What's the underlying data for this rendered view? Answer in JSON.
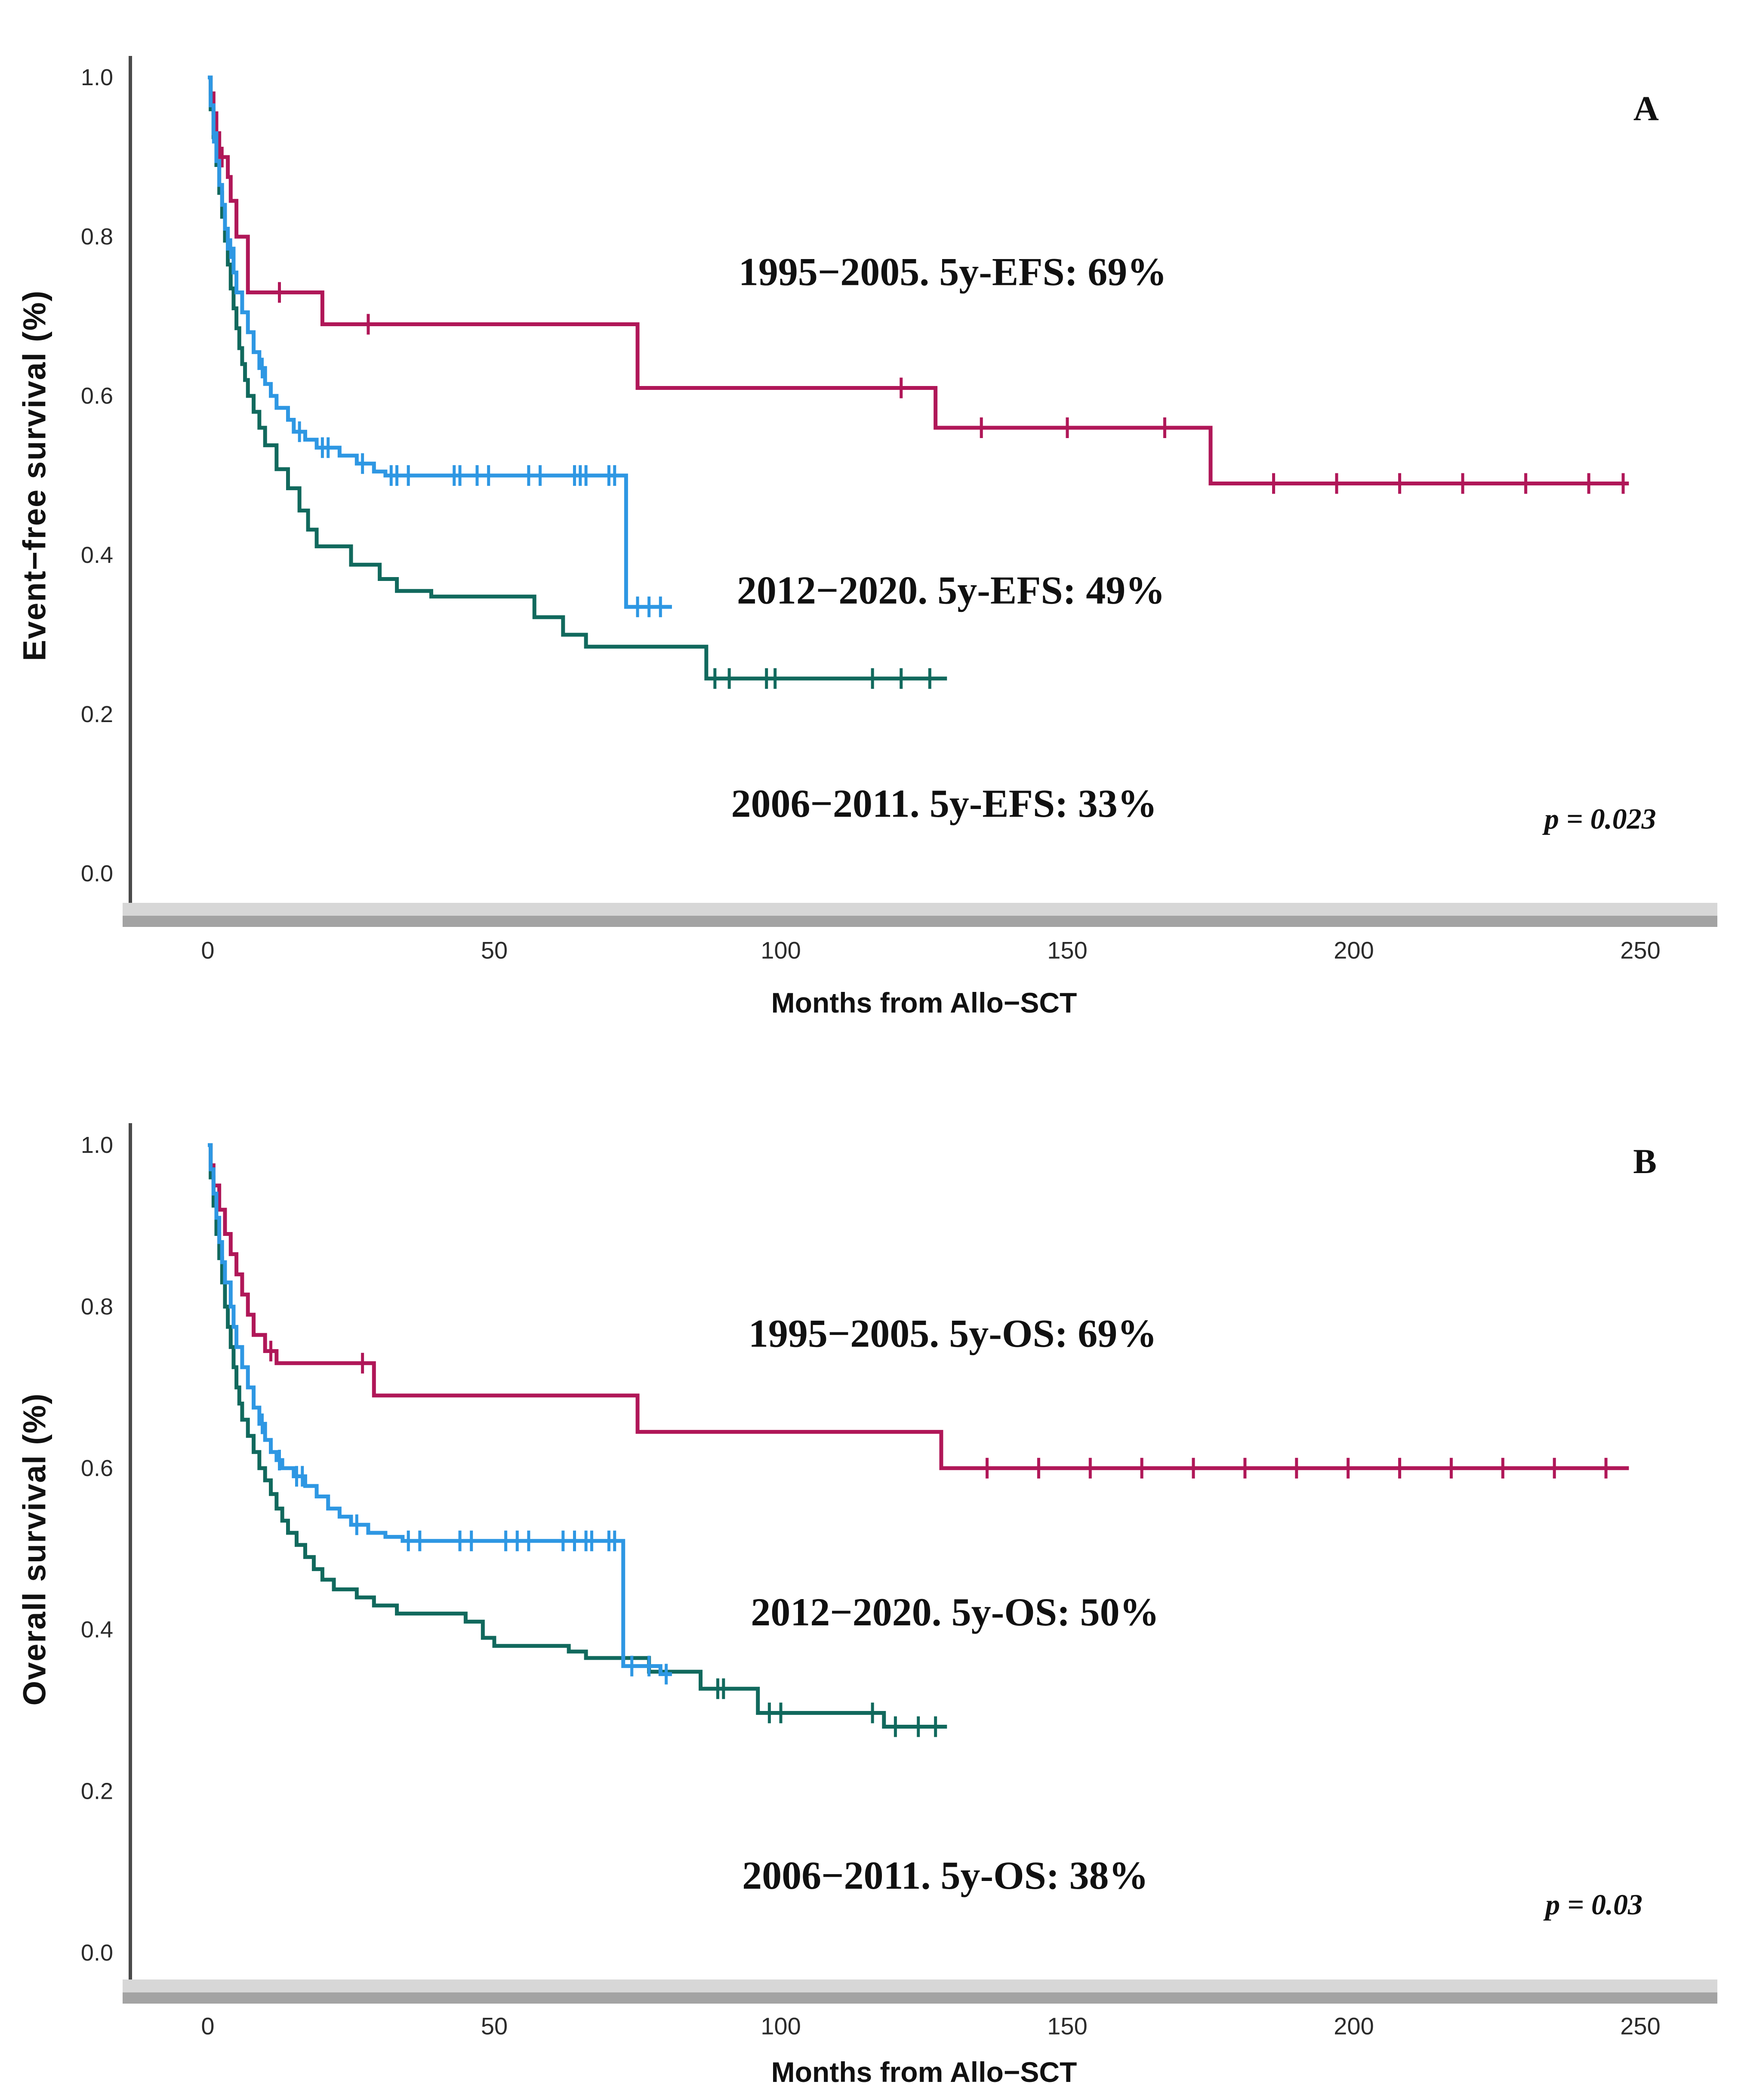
{
  "figure": {
    "background_color": "#ffffff",
    "axis_line_color": "#4a4a4a",
    "axis_strip_light_color": "#d7d7d7",
    "axis_strip_dark_color": "#a3a3a3",
    "text_color": "#111111"
  },
  "chart_data": [
    {
      "type": "line",
      "subtype": "kaplan-meier-step",
      "panel_letter": {
        "text": "A",
        "x_month": 251,
        "y_survival": 0.961
      },
      "xlabel": "Months from Allo−SCT",
      "ylabel": "Event−free survival (%)",
      "xlim": [
        0,
        250
      ],
      "ylim": [
        0.0,
        1.0
      ],
      "xticks": [
        0,
        50,
        100,
        150,
        200,
        250
      ],
      "ytick_labels": [
        "1.0",
        "0.8",
        "0.6",
        "0.4",
        "0.2",
        "0.0"
      ],
      "grid": false,
      "legend_position": "none",
      "p_value": {
        "text": "p = 0.023",
        "x_month": 243,
        "y_survival": 0.069
      },
      "annotations": [
        {
          "text": "1995−2005. 5y-EFS: 69%",
          "x_month": 130.0,
          "y_survival": 0.756
        },
        {
          "text": "2012−2020. 5y-EFS: 49%",
          "x_month": 129.7,
          "y_survival": 0.356
        },
        {
          "text": "2006−2011. 5y-EFS: 33%",
          "x_month": 128.5,
          "y_survival": 0.088
        }
      ],
      "series": [
        {
          "name": "1995-2005",
          "color": "#b01758",
          "five_year_value": "69%",
          "end_month": 248,
          "points": [
            [
              0,
              1.0
            ],
            [
              0.5,
              0.98
            ],
            [
              1,
              0.955
            ],
            [
              1.5,
              0.93
            ],
            [
              2,
              0.9
            ],
            [
              3.5,
              0.875
            ],
            [
              4,
              0.845
            ],
            [
              5,
              0.8
            ],
            [
              7,
              0.73
            ],
            [
              20,
              0.69
            ],
            [
              75,
              0.61
            ],
            [
              127,
              0.56
            ],
            [
              175,
              0.49
            ]
          ],
          "censor_months": [
            2.5,
            12.5,
            28,
            121,
            135,
            150,
            167,
            186,
            197,
            208,
            219,
            230,
            241,
            247
          ]
        },
        {
          "name": "2006-2011",
          "color": "#11695d",
          "five_year_value": "33%",
          "end_month": 129,
          "points": [
            [
              0,
              1.0
            ],
            [
              0.5,
              0.96
            ],
            [
              1,
              0.925
            ],
            [
              1.5,
              0.89
            ],
            [
              2,
              0.855
            ],
            [
              2.5,
              0.825
            ],
            [
              3,
              0.795
            ],
            [
              3.5,
              0.765
            ],
            [
              4,
              0.735
            ],
            [
              4.5,
              0.71
            ],
            [
              5,
              0.685
            ],
            [
              5.5,
              0.66
            ],
            [
              6,
              0.64
            ],
            [
              6.5,
              0.62
            ],
            [
              7,
              0.6
            ],
            [
              8,
              0.58
            ],
            [
              9,
              0.56
            ],
            [
              10,
              0.538
            ],
            [
              12,
              0.508
            ],
            [
              14,
              0.484
            ],
            [
              16,
              0.456
            ],
            [
              17.5,
              0.432
            ],
            [
              19,
              0.411
            ],
            [
              25,
              0.388
            ],
            [
              30,
              0.37
            ],
            [
              33,
              0.355
            ],
            [
              39,
              0.348
            ],
            [
              57,
              0.322
            ],
            [
              62,
              0.3
            ],
            [
              66,
              0.285
            ],
            [
              87,
              0.245
            ]
          ],
          "censor_months": [
            88.5,
            91,
            97.5,
            99,
            116,
            121,
            126
          ]
        },
        {
          "name": "2012-2020",
          "color": "#2e97e3",
          "five_year_value": "49%",
          "end_month": 81,
          "points": [
            [
              0,
              1.0
            ],
            [
              0.5,
              0.965
            ],
            [
              1,
              0.93
            ],
            [
              1.5,
              0.895
            ],
            [
              2,
              0.865
            ],
            [
              2.5,
              0.84
            ],
            [
              3,
              0.81
            ],
            [
              3.5,
              0.785
            ],
            [
              4.5,
              0.755
            ],
            [
              5,
              0.73
            ],
            [
              6,
              0.705
            ],
            [
              7,
              0.68
            ],
            [
              8,
              0.655
            ],
            [
              9,
              0.635
            ],
            [
              10,
              0.615
            ],
            [
              11,
              0.6
            ],
            [
              12,
              0.585
            ],
            [
              14,
              0.57
            ],
            [
              15,
              0.555
            ],
            [
              17,
              0.545
            ],
            [
              19,
              0.535
            ],
            [
              23,
              0.525
            ],
            [
              26,
              0.515
            ],
            [
              29,
              0.505
            ],
            [
              31,
              0.5
            ],
            [
              73,
              0.335
            ]
          ],
          "censor_months": [
            1,
            4,
            9.5,
            16,
            20,
            21,
            27,
            32,
            33,
            35,
            43,
            44,
            47,
            49,
            56,
            58,
            64,
            65,
            66,
            70,
            71,
            75,
            77,
            79
          ]
        }
      ]
    },
    {
      "type": "line",
      "subtype": "kaplan-meier-step",
      "panel_letter": {
        "text": "B",
        "x_month": 250.8,
        "y_survival": 0.98
      },
      "xlabel": "Months from Allo−SCT",
      "ylabel": "Overall survival (%)",
      "xlim": [
        0,
        250
      ],
      "ylim": [
        0.0,
        1.0
      ],
      "xticks": [
        0,
        50,
        100,
        150,
        200,
        250
      ],
      "ytick_labels": [
        "1.0",
        "0.8",
        "0.6",
        "0.4",
        "0.2",
        "0.0"
      ],
      "grid": false,
      "legend_position": "none",
      "p_value": {
        "text": "p = 0.03",
        "x_month": 241.9,
        "y_survival": 0.06
      },
      "annotations": [
        {
          "text": "1995−2005. 5y-OS: 69%",
          "x_month": 130.0,
          "y_survival": 0.767
        },
        {
          "text": "2012−2020. 5y-OS: 50%",
          "x_month": 130.4,
          "y_survival": 0.422
        },
        {
          "text": "2006−2011. 5y-OS: 38%",
          "x_month": 128.7,
          "y_survival": 0.096
        }
      ],
      "series": [
        {
          "name": "1995-2005",
          "color": "#b01758",
          "five_year_value": "69%",
          "end_month": 248,
          "points": [
            [
              0,
              1.0
            ],
            [
              0.5,
              0.975
            ],
            [
              1,
              0.95
            ],
            [
              2,
              0.92
            ],
            [
              3,
              0.89
            ],
            [
              4,
              0.865
            ],
            [
              5,
              0.84
            ],
            [
              6,
              0.815
            ],
            [
              7,
              0.79
            ],
            [
              8,
              0.765
            ],
            [
              10,
              0.745
            ],
            [
              12,
              0.73
            ],
            [
              29,
              0.69
            ],
            [
              75,
              0.645
            ],
            [
              128,
              0.6
            ]
          ],
          "censor_months": [
            11,
            27,
            136,
            145,
            154,
            163,
            172,
            181,
            190,
            199,
            208,
            217,
            226,
            235,
            244
          ]
        },
        {
          "name": "2006-2011",
          "color": "#11695d",
          "five_year_value": "38%",
          "end_month": 129,
          "points": [
            [
              0,
              1.0
            ],
            [
              0.5,
              0.96
            ],
            [
              1,
              0.925
            ],
            [
              1.5,
              0.89
            ],
            [
              2,
              0.86
            ],
            [
              2.5,
              0.83
            ],
            [
              3,
              0.8
            ],
            [
              3.5,
              0.775
            ],
            [
              4,
              0.75
            ],
            [
              4.5,
              0.725
            ],
            [
              5,
              0.7
            ],
            [
              5.5,
              0.68
            ],
            [
              6,
              0.66
            ],
            [
              7,
              0.64
            ],
            [
              8,
              0.62
            ],
            [
              9,
              0.6
            ],
            [
              10,
              0.585
            ],
            [
              11,
              0.568
            ],
            [
              12,
              0.55
            ],
            [
              13,
              0.535
            ],
            [
              14,
              0.52
            ],
            [
              15.5,
              0.505
            ],
            [
              17,
              0.49
            ],
            [
              18.5,
              0.475
            ],
            [
              20,
              0.462
            ],
            [
              22,
              0.45
            ],
            [
              26,
              0.44
            ],
            [
              29,
              0.43
            ],
            [
              33,
              0.42
            ],
            [
              45,
              0.41
            ],
            [
              48,
              0.39
            ],
            [
              50,
              0.38
            ],
            [
              63,
              0.373
            ],
            [
              66,
              0.365
            ],
            [
              77,
              0.348
            ],
            [
              86,
              0.327
            ],
            [
              96,
              0.297
            ],
            [
              118,
              0.28
            ]
          ],
          "censor_months": [
            89,
            90,
            98,
            100,
            116,
            120,
            124,
            127
          ]
        },
        {
          "name": "2012-2020",
          "color": "#2e97e3",
          "five_year_value": "50%",
          "end_month": 81,
          "points": [
            [
              0,
              1.0
            ],
            [
              0.5,
              0.97
            ],
            [
              1,
              0.94
            ],
            [
              1.5,
              0.91
            ],
            [
              2,
              0.88
            ],
            [
              2.5,
              0.855
            ],
            [
              3,
              0.83
            ],
            [
              4,
              0.8
            ],
            [
              4.5,
              0.775
            ],
            [
              5,
              0.75
            ],
            [
              6,
              0.725
            ],
            [
              7,
              0.7
            ],
            [
              8,
              0.675
            ],
            [
              9,
              0.655
            ],
            [
              10,
              0.635
            ],
            [
              11,
              0.62
            ],
            [
              12,
              0.61
            ],
            [
              13,
              0.6
            ],
            [
              15,
              0.59
            ],
            [
              17,
              0.578
            ],
            [
              19,
              0.565
            ],
            [
              21,
              0.55
            ],
            [
              23,
              0.54
            ],
            [
              25,
              0.53
            ],
            [
              28,
              0.52
            ],
            [
              31,
              0.515
            ],
            [
              34,
              0.51
            ],
            [
              72.5,
              0.355
            ],
            [
              79,
              0.345
            ]
          ],
          "censor_months": [
            9.5,
            12.5,
            15.5,
            16.5,
            26,
            35,
            37,
            44,
            46,
            52,
            54,
            56,
            62,
            64,
            66,
            67,
            70,
            71,
            74,
            77,
            80
          ]
        }
      ]
    }
  ]
}
